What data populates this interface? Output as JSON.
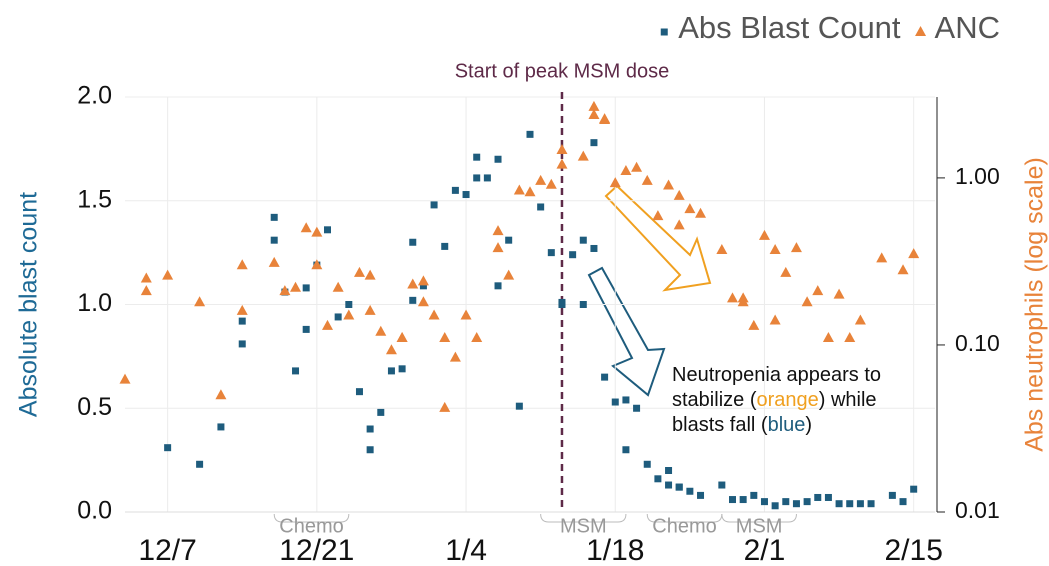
{
  "chart_data": {
    "type": "scatter",
    "legend": "top-right",
    "ylabel": "Absolute blast count",
    "y2label": "Abs neutrophils (log scale)",
    "ylim": [
      0,
      2
    ],
    "yticks": [
      {
        "value": 0,
        "label": "0.0"
      },
      {
        "value": 0.5,
        "label": "0.5"
      },
      {
        "value": 1,
        "label": "1.0"
      },
      {
        "value": 1.5,
        "label": "1.5"
      },
      {
        "value": 2,
        "label": "2.0"
      }
    ],
    "y2lim": [
      0.01,
      3.05
    ],
    "y2ticks": [
      0.01,
      {
        "value": 0.1,
        "label": "0.10"
      },
      {
        "value": 1,
        "label": "1.00"
      }
    ],
    "y2log": true,
    "xlim": [
      "12/3",
      "2/17"
    ],
    "xticks": [
      "12/7",
      "12/21",
      "1/4",
      "1/18",
      "2/1",
      "2/15"
    ],
    "grid": true,
    "series": [
      {
        "name": "Abs Blast Count",
        "color": "#1e5c7d",
        "marker": "square",
        "x": [
          "12/7",
          "12/10",
          "12/12",
          "12/14",
          "12/14",
          "12/17",
          "12/17",
          "12/18",
          "12/19",
          "12/20",
          "12/20",
          "12/21",
          "12/22",
          "12/23",
          "12/24",
          "12/25",
          "12/26",
          "12/26",
          "12/27",
          "12/28",
          "12/29",
          "12/30",
          "12/30",
          "12/31",
          "1/1",
          "1/2",
          "1/3",
          "1/4",
          "1/5",
          "1/5",
          "1/6",
          "1/7",
          "1/7",
          "1/8",
          "1/9",
          "1/10",
          "1/11",
          "1/12",
          "1/13",
          "1/13",
          "1/14",
          "1/15",
          "1/15",
          "1/16",
          "1/16",
          "1/17",
          "1/18",
          "1/19",
          "1/19",
          "1/20",
          "1/21",
          "1/22",
          "1/23",
          "1/23",
          "1/24",
          "1/24",
          "1/25",
          "1/26",
          "1/28",
          "1/29",
          "1/30",
          "1/31",
          "2/1",
          "2/2",
          "2/3",
          "2/4",
          "2/5",
          "2/6",
          "2/7",
          "2/8",
          "2/9",
          "2/10",
          "2/11",
          "2/13",
          "2/14",
          "2/15"
        ],
        "values": [
          0.31,
          0.23,
          0.41,
          0.81,
          0.92,
          1.31,
          1.42,
          1.06,
          0.68,
          1.08,
          0.88,
          1.19,
          1.36,
          0.94,
          1.0,
          0.58,
          0.4,
          0.3,
          0.48,
          0.68,
          0.69,
          1.3,
          1.02,
          1.09,
          1.48,
          1.28,
          1.55,
          1.53,
          1.61,
          1.71,
          1.61,
          1.09,
          1.7,
          1.31,
          0.51,
          1.82,
          1.47,
          1.25,
          1.01,
          1.0,
          1.24,
          1.31,
          1.0,
          1.78,
          1.27,
          0.65,
          0.53,
          0.54,
          0.3,
          0.5,
          0.23,
          0.16,
          0.13,
          0.2,
          0.12,
          0.12,
          0.1,
          0.08,
          0.13,
          0.06,
          0.06,
          0.08,
          0.05,
          0.03,
          0.05,
          0.04,
          0.05,
          0.07,
          0.07,
          0.04,
          0.04,
          0.04,
          0.04,
          0.08,
          0.05,
          0.11
        ]
      },
      {
        "name": "ANC",
        "color": "#e8833a",
        "marker": "triangle",
        "axis": "y2",
        "x": [
          "12/3",
          "12/5",
          "12/5",
          "12/7",
          "12/10",
          "12/12",
          "12/14",
          "12/14",
          "12/17",
          "12/18",
          "12/19",
          "12/20",
          "12/21",
          "12/21",
          "12/22",
          "12/23",
          "12/24",
          "12/25",
          "12/26",
          "12/26",
          "12/27",
          "12/28",
          "12/29",
          "12/29",
          "12/30",
          "12/31",
          "12/31",
          "1/1",
          "1/2",
          "1/2",
          "1/3",
          "1/4",
          "1/5",
          "1/7",
          "1/7",
          "1/8",
          "1/9",
          "1/10",
          "1/11",
          "1/12",
          "1/13",
          "1/13",
          "1/15",
          "1/16",
          "1/16",
          "1/17",
          "1/17",
          "1/18",
          "1/19",
          "1/20",
          "1/21",
          "1/22",
          "1/23",
          "1/24",
          "1/24",
          "1/25",
          "1/26",
          "1/28",
          "1/29",
          "1/30",
          "1/30",
          "1/31",
          "2/1",
          "2/2",
          "2/2",
          "2/3",
          "2/4",
          "2/5",
          "2/6",
          "2/7",
          "2/8",
          "2/9",
          "2/10",
          "2/12",
          "2/14",
          "2/15"
        ],
        "values": [
          0.062,
          0.25,
          0.21,
          0.26,
          0.18,
          0.05,
          0.16,
          0.3,
          0.31,
          0.21,
          0.22,
          0.5,
          0.47,
          0.3,
          0.13,
          0.22,
          0.15,
          0.27,
          0.26,
          0.16,
          0.12,
          0.093,
          0.11,
          0.11,
          0.23,
          0.24,
          0.18,
          0.15,
          0.042,
          0.11,
          0.084,
          0.15,
          0.11,
          0.48,
          0.38,
          0.26,
          0.84,
          0.82,
          0.96,
          0.91,
          1.2,
          1.47,
          1.34,
          2.66,
          2.38,
          2.25,
          2.22,
          0.93,
          1.1,
          1.15,
          0.96,
          0.59,
          0.9,
          0.78,
          0.52,
          0.65,
          0.61,
          0.37,
          0.19,
          0.19,
          0.18,
          0.13,
          0.45,
          0.37,
          0.14,
          0.27,
          0.38,
          0.18,
          0.21,
          0.11,
          0.2,
          0.11,
          0.14,
          0.33,
          0.28,
          0.35
        ]
      }
    ],
    "annotations": [
      {
        "text": "Start of peak MSM dose",
        "x": "1/13"
      }
    ],
    "note": [
      [
        {
          "text": "Neutropenia appears to"
        }
      ],
      [
        {
          "text": "stabilize ("
        },
        {
          "text": "orange",
          "color": "#f0a020"
        },
        {
          "text": ") while"
        }
      ],
      [
        {
          "text": "blasts fall ("
        },
        {
          "text": "blue",
          "color": "#1e5c7d"
        },
        {
          "text": ")"
        }
      ]
    ],
    "periods": [
      {
        "label": "Chemo",
        "start": "12/17",
        "end": "12/24"
      },
      {
        "label": "MSM",
        "start": "1/11",
        "end": "1/19"
      },
      {
        "label": "Chemo",
        "start": "1/21",
        "end": "1/28"
      },
      {
        "label": "MSM",
        "start": "1/28",
        "end": "2/4"
      }
    ]
  }
}
